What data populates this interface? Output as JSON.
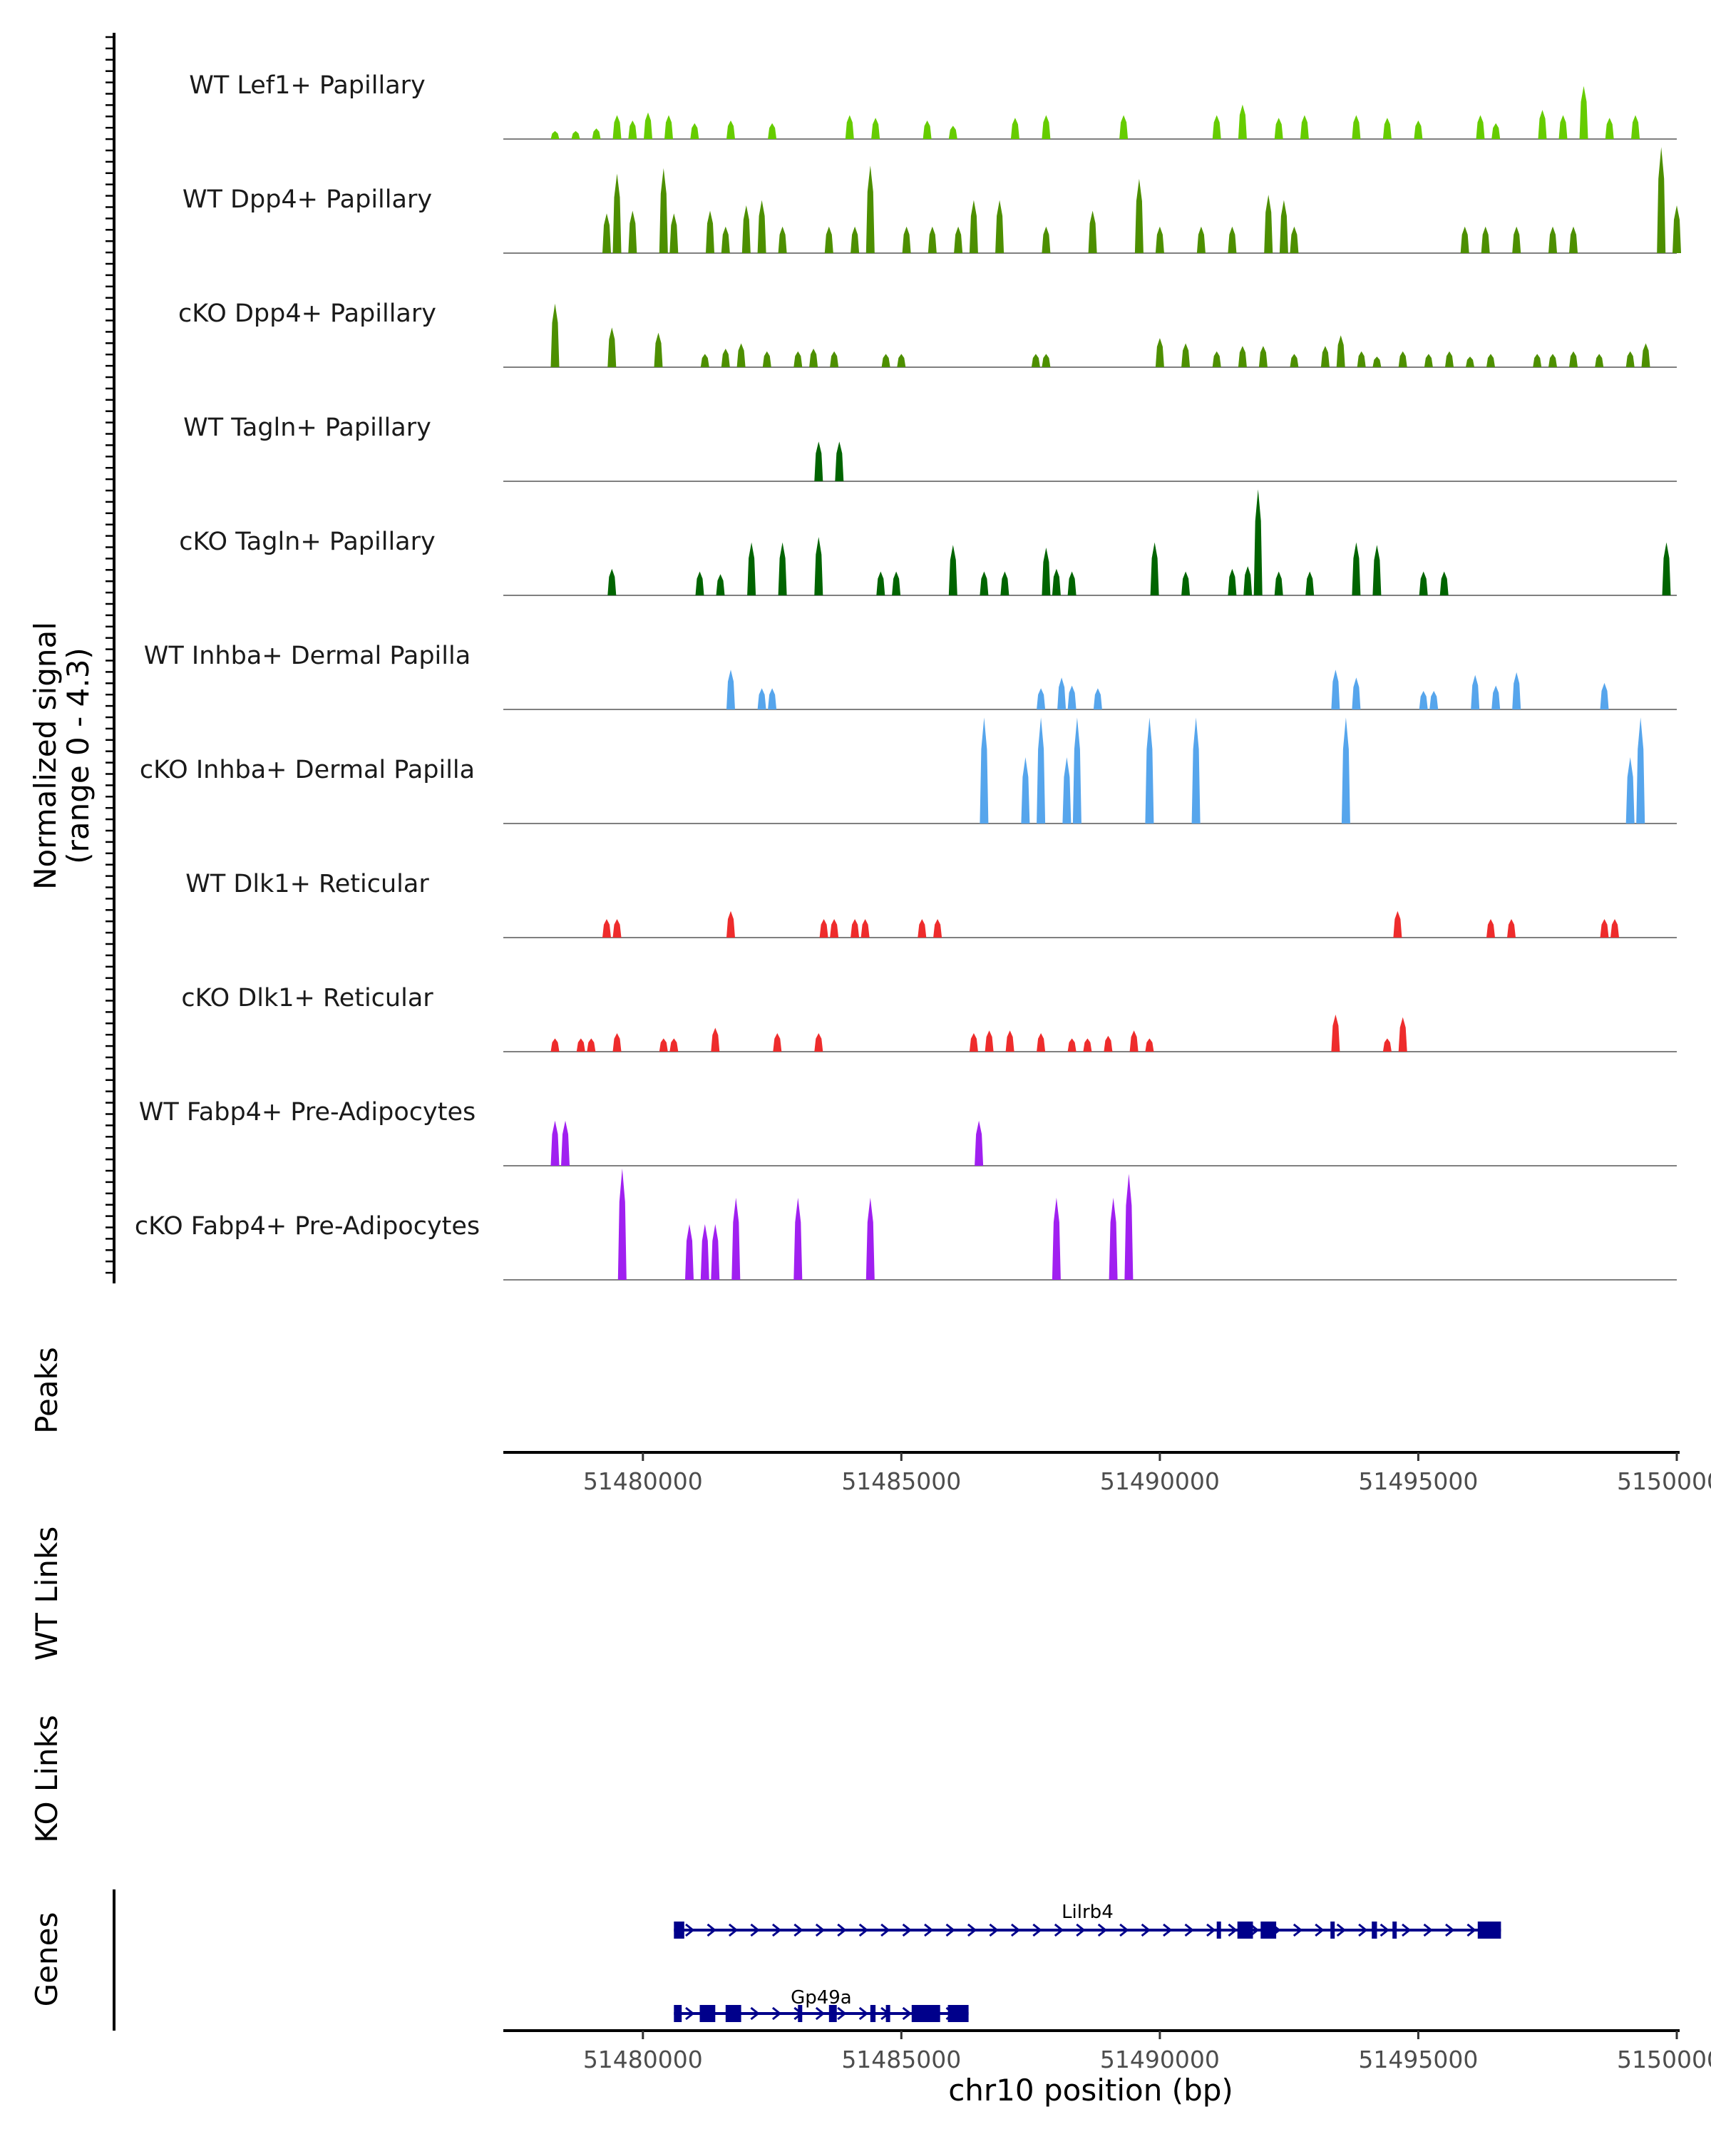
{
  "chart_data": {
    "type": "area",
    "title": "",
    "y_axis_title_line1": "Normalized signal",
    "y_axis_title_line2": "(range 0 - 4.3)",
    "ylim": [
      0,
      4.3
    ],
    "xlabel": "chr10 position (bp)",
    "xlim": [
      51477300,
      51500000
    ],
    "x_ticks": [
      51480000,
      51485000,
      51490000,
      51495000,
      51500000
    ],
    "x_tick_labels": [
      "51480000",
      "51485000",
      "51490000",
      "51495000",
      "51500000"
    ],
    "series": [
      {
        "name": "WT Lef1+ Papillary",
        "color": "#66CC00",
        "peaks": [
          [
            51478300,
            0.3
          ],
          [
            51478700,
            0.3
          ],
          [
            51479100,
            0.4
          ],
          [
            51479500,
            0.9
          ],
          [
            51479800,
            0.7
          ],
          [
            51480100,
            1.0
          ],
          [
            51480500,
            0.9
          ],
          [
            51481000,
            0.6
          ],
          [
            51481700,
            0.7
          ],
          [
            51482500,
            0.6
          ],
          [
            51484000,
            0.9
          ],
          [
            51484500,
            0.8
          ],
          [
            51485500,
            0.7
          ],
          [
            51486000,
            0.5
          ],
          [
            51487200,
            0.8
          ],
          [
            51487800,
            0.9
          ],
          [
            51489300,
            0.9
          ],
          [
            51491100,
            0.9
          ],
          [
            51491600,
            1.3
          ],
          [
            51492300,
            0.8
          ],
          [
            51492800,
            0.9
          ],
          [
            51493800,
            0.9
          ],
          [
            51494400,
            0.8
          ],
          [
            51495000,
            0.7
          ],
          [
            51496200,
            0.9
          ],
          [
            51496500,
            0.6
          ],
          [
            51497400,
            1.1
          ],
          [
            51497800,
            0.9
          ],
          [
            51498200,
            2.0
          ],
          [
            51498700,
            0.8
          ],
          [
            51499200,
            0.9
          ]
        ]
      },
      {
        "name": "WT Dpp4+ Papillary",
        "color": "#4D8F00",
        "peaks": [
          [
            51479300,
            1.5
          ],
          [
            51479500,
            3.0
          ],
          [
            51479800,
            1.6
          ],
          [
            51480400,
            3.2
          ],
          [
            51480600,
            1.5
          ],
          [
            51481300,
            1.6
          ],
          [
            51481600,
            1.0
          ],
          [
            51482000,
            1.8
          ],
          [
            51482300,
            2.0
          ],
          [
            51482700,
            1.0
          ],
          [
            51483600,
            1.0
          ],
          [
            51484100,
            1.0
          ],
          [
            51484400,
            3.3
          ],
          [
            51485100,
            1.0
          ],
          [
            51485600,
            1.0
          ],
          [
            51486100,
            1.0
          ],
          [
            51486400,
            2.0
          ],
          [
            51486900,
            2.0
          ],
          [
            51487800,
            1.0
          ],
          [
            51488700,
            1.6
          ],
          [
            51489600,
            2.8
          ],
          [
            51490000,
            1.0
          ],
          [
            51490800,
            1.0
          ],
          [
            51491400,
            1.0
          ],
          [
            51492100,
            2.2
          ],
          [
            51492400,
            2.0
          ],
          [
            51492600,
            1.0
          ],
          [
            51495900,
            1.0
          ],
          [
            51496300,
            1.0
          ],
          [
            51496900,
            1.0
          ],
          [
            51497600,
            1.0
          ],
          [
            51498000,
            1.0
          ],
          [
            51499700,
            4.0
          ],
          [
            51500000,
            1.8
          ]
        ]
      },
      {
        "name": "cKO Dpp4+ Papillary",
        "color": "#4D8F00",
        "peaks": [
          [
            51478300,
            2.4
          ],
          [
            51479400,
            1.5
          ],
          [
            51480300,
            1.3
          ],
          [
            51481200,
            0.5
          ],
          [
            51481600,
            0.7
          ],
          [
            51481900,
            0.9
          ],
          [
            51482400,
            0.6
          ],
          [
            51483000,
            0.6
          ],
          [
            51483300,
            0.7
          ],
          [
            51483700,
            0.6
          ],
          [
            51484700,
            0.5
          ],
          [
            51485000,
            0.5
          ],
          [
            51487600,
            0.5
          ],
          [
            51487800,
            0.5
          ],
          [
            51490000,
            1.1
          ],
          [
            51490500,
            0.9
          ],
          [
            51491100,
            0.6
          ],
          [
            51491600,
            0.8
          ],
          [
            51492000,
            0.8
          ],
          [
            51492600,
            0.5
          ],
          [
            51493200,
            0.8
          ],
          [
            51493500,
            1.2
          ],
          [
            51493900,
            0.6
          ],
          [
            51494200,
            0.4
          ],
          [
            51494700,
            0.6
          ],
          [
            51495200,
            0.5
          ],
          [
            51495600,
            0.6
          ],
          [
            51496000,
            0.4
          ],
          [
            51496400,
            0.5
          ],
          [
            51497300,
            0.5
          ],
          [
            51497600,
            0.5
          ],
          [
            51498000,
            0.6
          ],
          [
            51498500,
            0.5
          ],
          [
            51499100,
            0.6
          ],
          [
            51499400,
            0.9
          ]
        ]
      },
      {
        "name": "WT Tagln+ Papillary",
        "color": "#006400",
        "peaks": [
          [
            51483400,
            1.5
          ],
          [
            51483800,
            1.5
          ]
        ]
      },
      {
        "name": "cKO Tagln+ Papillary",
        "color": "#006400",
        "peaks": [
          [
            51479400,
            1.0
          ],
          [
            51481100,
            0.9
          ],
          [
            51481500,
            0.8
          ],
          [
            51482100,
            2.0
          ],
          [
            51482700,
            2.0
          ],
          [
            51483400,
            2.2
          ],
          [
            51484600,
            0.9
          ],
          [
            51484900,
            0.9
          ],
          [
            51486000,
            1.9
          ],
          [
            51486600,
            0.9
          ],
          [
            51487000,
            0.9
          ],
          [
            51487800,
            1.8
          ],
          [
            51488000,
            1.0
          ],
          [
            51488300,
            0.9
          ],
          [
            51489900,
            2.0
          ],
          [
            51490500,
            0.9
          ],
          [
            51491400,
            1.0
          ],
          [
            51491700,
            1.1
          ],
          [
            51491900,
            4.0
          ],
          [
            51492300,
            0.9
          ],
          [
            51492900,
            0.9
          ],
          [
            51493800,
            2.0
          ],
          [
            51494200,
            1.9
          ],
          [
            51495100,
            0.9
          ],
          [
            51495500,
            0.9
          ],
          [
            51499800,
            2.0
          ]
        ]
      },
      {
        "name": "WT Inhba+ Dermal Papilla",
        "color": "#56A5EC",
        "peaks": [
          [
            51481700,
            1.5
          ],
          [
            51482300,
            0.8
          ],
          [
            51482500,
            0.8
          ],
          [
            51487700,
            0.8
          ],
          [
            51488100,
            1.2
          ],
          [
            51488300,
            0.9
          ],
          [
            51488800,
            0.8
          ],
          [
            51493400,
            1.5
          ],
          [
            51493800,
            1.2
          ],
          [
            51495100,
            0.7
          ],
          [
            51495300,
            0.7
          ],
          [
            51496100,
            1.3
          ],
          [
            51496500,
            0.9
          ],
          [
            51496900,
            1.4
          ],
          [
            51498600,
            1.0
          ]
        ]
      },
      {
        "name": "cKO Inhba+ Dermal Papilla",
        "color": "#56A5EC",
        "peaks": [
          [
            51486600,
            4.0
          ],
          [
            51487400,
            2.5
          ],
          [
            51487700,
            4.0
          ],
          [
            51488200,
            2.5
          ],
          [
            51488400,
            4.0
          ],
          [
            51489800,
            4.0
          ],
          [
            51490700,
            4.0
          ],
          [
            51493600,
            4.0
          ],
          [
            51499100,
            2.5
          ],
          [
            51499300,
            4.0
          ]
        ]
      },
      {
        "name": "WT Dlk1+ Reticular",
        "color": "#EE2C2C",
        "peaks": [
          [
            51479300,
            0.7
          ],
          [
            51479500,
            0.7
          ],
          [
            51481700,
            1.0
          ],
          [
            51483500,
            0.7
          ],
          [
            51483700,
            0.7
          ],
          [
            51484100,
            0.7
          ],
          [
            51484300,
            0.7
          ],
          [
            51485400,
            0.7
          ],
          [
            51485700,
            0.7
          ],
          [
            51494600,
            1.0
          ],
          [
            51496400,
            0.7
          ],
          [
            51496800,
            0.7
          ],
          [
            51498600,
            0.7
          ],
          [
            51498800,
            0.7
          ]
        ]
      },
      {
        "name": "cKO Dlk1+ Reticular",
        "color": "#EE2C2C",
        "peaks": [
          [
            51478300,
            0.5
          ],
          [
            51478800,
            0.5
          ],
          [
            51479000,
            0.5
          ],
          [
            51479500,
            0.7
          ],
          [
            51480400,
            0.5
          ],
          [
            51480600,
            0.5
          ],
          [
            51481400,
            0.9
          ],
          [
            51482600,
            0.7
          ],
          [
            51483400,
            0.7
          ],
          [
            51486400,
            0.7
          ],
          [
            51486700,
            0.8
          ],
          [
            51487100,
            0.8
          ],
          [
            51487700,
            0.7
          ],
          [
            51488300,
            0.5
          ],
          [
            51488600,
            0.5
          ],
          [
            51489000,
            0.6
          ],
          [
            51489500,
            0.8
          ],
          [
            51489800,
            0.5
          ],
          [
            51493400,
            1.4
          ],
          [
            51494400,
            0.5
          ],
          [
            51494700,
            1.3
          ]
        ]
      },
      {
        "name": "WT Fabp4+ Pre-Adipocytes",
        "color": "#A020F0",
        "peaks": [
          [
            51478300,
            1.7
          ],
          [
            51478500,
            1.7
          ],
          [
            51486500,
            1.7
          ]
        ]
      },
      {
        "name": "cKO Fabp4+ Pre-Adipocytes",
        "color": "#A020F0",
        "peaks": [
          [
            51479600,
            4.2
          ],
          [
            51480900,
            2.1
          ],
          [
            51481200,
            2.1
          ],
          [
            51481400,
            2.1
          ],
          [
            51481800,
            3.1
          ],
          [
            51483000,
            3.1
          ],
          [
            51484400,
            3.1
          ],
          [
            51488000,
            3.1
          ],
          [
            51489100,
            3.1
          ],
          [
            51489400,
            4.0
          ]
        ]
      }
    ],
    "peaks_track": {
      "label": "Peaks",
      "regions": []
    },
    "links_tracks": [
      {
        "label": "WT Links",
        "links": []
      },
      {
        "label": "KO Links",
        "links": []
      }
    ],
    "genes_track": {
      "label": "Genes",
      "color": "#00008B",
      "genes": [
        {
          "name": "Lilrb4",
          "strand": "+",
          "start": 51480600,
          "end": 51496600,
          "exons": [
            [
              51480600,
              51480800
            ],
            [
              51491100,
              51491150
            ],
            [
              51491500,
              51491800
            ],
            [
              51491950,
              51492250
            ],
            [
              51493300,
              51493350
            ],
            [
              51494100,
              51494200
            ],
            [
              51494500,
              51494550
            ],
            [
              51496150,
              51496600
            ]
          ]
        },
        {
          "name": "Gp49a",
          "strand": "+",
          "start": 51480600,
          "end": 51486300,
          "exons": [
            [
              51480600,
              51480750
            ],
            [
              51481100,
              51481400
            ],
            [
              51481600,
              51481900
            ],
            [
              51483000,
              51483050
            ],
            [
              51483600,
              51483750
            ],
            [
              51484400,
              51484500
            ],
            [
              51484700,
              51484750
            ],
            [
              51485200,
              51485750
            ],
            [
              51485900,
              51486300
            ]
          ]
        }
      ]
    }
  }
}
